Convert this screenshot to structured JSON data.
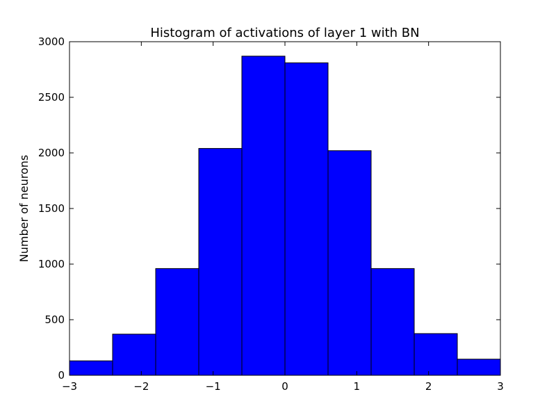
{
  "chart_data": {
    "type": "bar",
    "title": "Histogram of activations of layer 1  with BN",
    "xlabel": "",
    "ylabel": "Number of neurons",
    "xlim": [
      -3,
      3
    ],
    "ylim": [
      0,
      3000
    ],
    "grid": false,
    "bar_color": "#0000ff",
    "bin_edges": [
      -3,
      -2.4,
      -1.8,
      -1.2,
      -0.6,
      0,
      0.6,
      1.2,
      1.8,
      2.4,
      3
    ],
    "values": [
      130,
      370,
      960,
      2040,
      2870,
      2810,
      2020,
      960,
      375,
      145
    ],
    "x_ticks": [
      -3,
      -2,
      -1,
      0,
      1,
      2,
      3
    ],
    "x_tick_labels": [
      "−3",
      "−2",
      "−1",
      "0",
      "1",
      "2",
      "3"
    ],
    "y_ticks": [
      0,
      500,
      1000,
      1500,
      2000,
      2500,
      3000
    ],
    "y_tick_labels": [
      "0",
      "500",
      "1000",
      "1500",
      "2000",
      "2500",
      "3000"
    ]
  }
}
